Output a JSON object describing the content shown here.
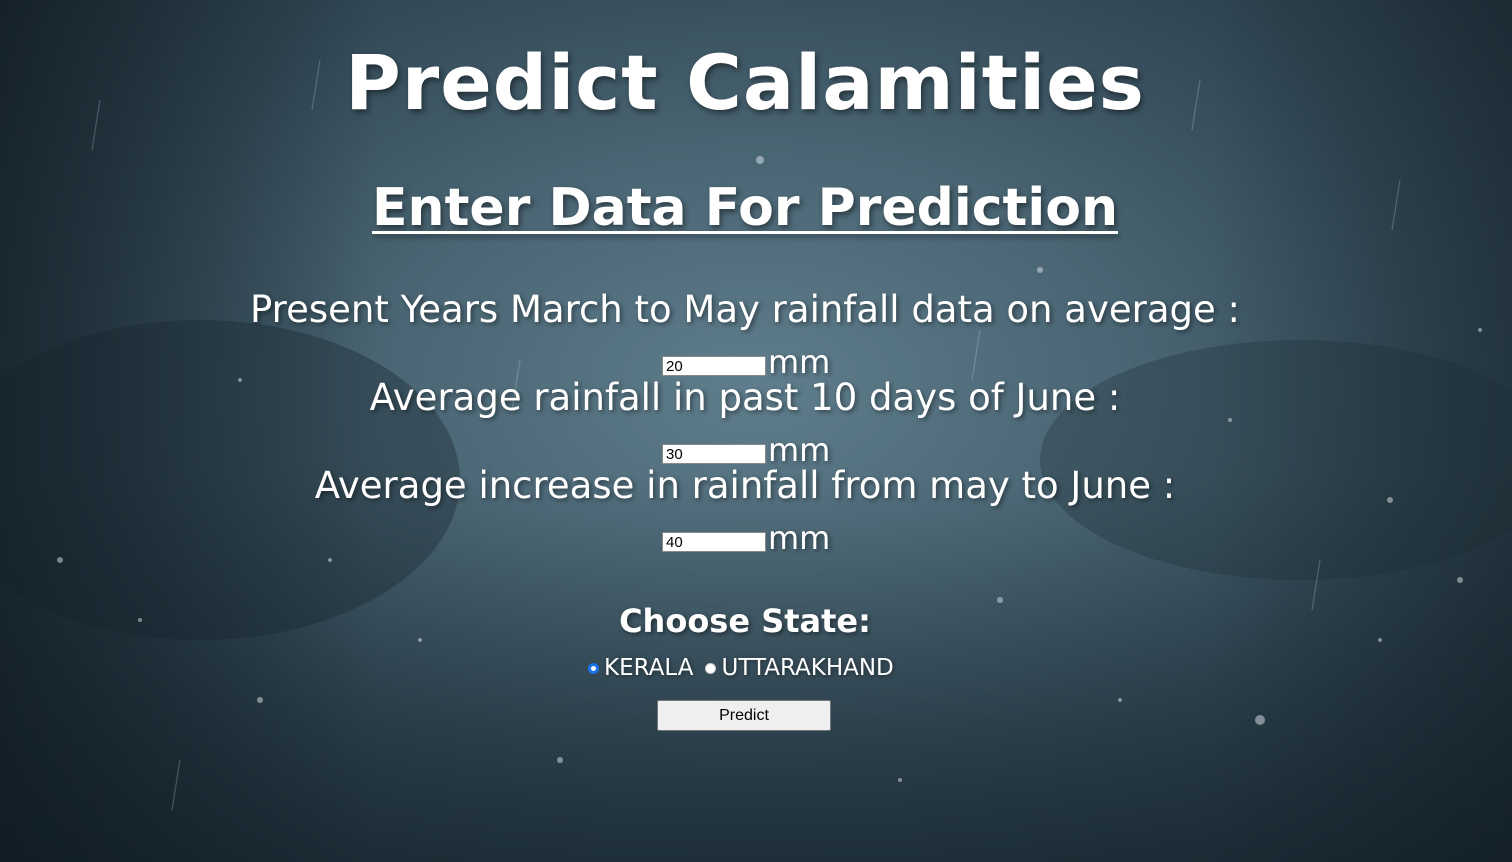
{
  "page": {
    "title": "Predict Calamities",
    "subtitle": "Enter Data For Prediction"
  },
  "form": {
    "fields": [
      {
        "label": "Present Years March to May rainfall data on average :",
        "value": "20",
        "unit": "mm"
      },
      {
        "label": "Average rainfall in past 10 days of June :",
        "value": "30",
        "unit": "mm"
      },
      {
        "label": "Average increase in rainfall from may to June :",
        "value": "40",
        "unit": "mm"
      }
    ],
    "state_label": "Choose State:",
    "states": [
      {
        "label": "KERALA",
        "checked": true
      },
      {
        "label": "UTTARAKHAND",
        "checked": false
      }
    ],
    "submit_label": "Predict"
  },
  "colors": {
    "text": "#ffffff",
    "radio_checked": "#1a73e8",
    "button_bg": "#efefef"
  }
}
